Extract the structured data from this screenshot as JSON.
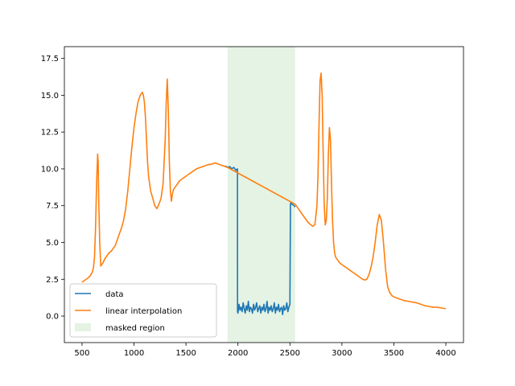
{
  "chart_data": {
    "type": "line",
    "title": "",
    "xlabel": "",
    "ylabel": "",
    "xlim": [
      330,
      4170
    ],
    "ylim": [
      -1.8,
      18.3
    ],
    "xticks": [
      500,
      1000,
      1500,
      2000,
      2500,
      3000,
      3500,
      4000
    ],
    "yticks": [
      0.0,
      2.5,
      5.0,
      7.5,
      10.0,
      12.5,
      15.0,
      17.5
    ],
    "xtick_labels": [
      "500",
      "1000",
      "1500",
      "2000",
      "2500",
      "3000",
      "3500",
      "4000"
    ],
    "ytick_labels": [
      "0.0",
      "2.5",
      "5.0",
      "7.5",
      "10.0",
      "12.5",
      "15.0",
      "17.5"
    ],
    "grid": false,
    "legend_position": "lower-left",
    "masked_region": {
      "label": "masked region",
      "x0": 1900,
      "x1": 2550,
      "color": "#2ca02c",
      "alpha": 0.13
    },
    "series": [
      {
        "name": "data",
        "color": "#1f77b4",
        "x": [
          1880,
          1900,
          1920,
          1940,
          1960,
          1980,
          1995,
          1996,
          2000,
          2010,
          2020,
          2030,
          2040,
          2050,
          2060,
          2070,
          2080,
          2090,
          2100,
          2110,
          2120,
          2130,
          2140,
          2150,
          2160,
          2170,
          2180,
          2190,
          2200,
          2210,
          2220,
          2230,
          2240,
          2250,
          2260,
          2270,
          2280,
          2290,
          2300,
          2310,
          2320,
          2330,
          2340,
          2350,
          2360,
          2370,
          2380,
          2390,
          2400,
          2410,
          2420,
          2430,
          2440,
          2450,
          2460,
          2470,
          2480,
          2490,
          2500,
          2505,
          2510,
          2520,
          2540,
          2550
        ],
        "y": [
          10.2,
          10.1,
          10.15,
          10.0,
          10.1,
          9.9,
          10.0,
          0.3,
          0.2,
          0.8,
          0.4,
          0.6,
          0.3,
          0.9,
          0.5,
          0.2,
          0.7,
          0.4,
          1.0,
          0.3,
          0.6,
          0.5,
          0.2,
          0.8,
          0.4,
          0.6,
          0.9,
          0.3,
          0.5,
          0.7,
          0.2,
          0.6,
          0.4,
          0.8,
          0.3,
          0.5,
          1.0,
          0.2,
          0.6,
          0.4,
          0.7,
          0.3,
          0.5,
          0.9,
          0.2,
          0.6,
          0.4,
          0.8,
          0.3,
          0.5,
          0.6,
          0.1,
          0.7,
          0.4,
          0.5,
          0.9,
          0.3,
          0.6,
          0.8,
          7.6,
          7.7,
          7.6,
          7.5,
          7.4
        ]
      },
      {
        "name": "linear interpolation",
        "color": "#ff7f0e",
        "x": [
          500,
          520,
          540,
          560,
          580,
          600,
          610,
          620,
          630,
          640,
          650,
          655,
          660,
          670,
          680,
          690,
          700,
          720,
          740,
          760,
          780,
          800,
          820,
          840,
          860,
          880,
          900,
          920,
          940,
          960,
          980,
          1000,
          1020,
          1040,
          1060,
          1080,
          1090,
          1100,
          1110,
          1120,
          1130,
          1140,
          1160,
          1180,
          1200,
          1220,
          1240,
          1260,
          1280,
          1300,
          1310,
          1320,
          1330,
          1340,
          1350,
          1360,
          1370,
          1380,
          1400,
          1420,
          1440,
          1460,
          1480,
          1500,
          1520,
          1540,
          1560,
          1580,
          1600,
          1620,
          1640,
          1660,
          1680,
          1700,
          1720,
          1740,
          1760,
          1780,
          1800,
          1820,
          1840,
          1860,
          1880,
          1900,
          2550,
          2570,
          2590,
          2610,
          2630,
          2650,
          2670,
          2700,
          2720,
          2740,
          2760,
          2770,
          2780,
          2790,
          2800,
          2810,
          2820,
          2830,
          2840,
          2850,
          2860,
          2870,
          2880,
          2890,
          2900,
          2910,
          2920,
          2930,
          2940,
          2960,
          2980,
          3000,
          3020,
          3040,
          3060,
          3080,
          3100,
          3120,
          3140,
          3160,
          3180,
          3200,
          3220,
          3240,
          3260,
          3280,
          3300,
          3320,
          3340,
          3360,
          3380,
          3400,
          3420,
          3440,
          3460,
          3480,
          3500,
          3520,
          3540,
          3560,
          3580,
          3600,
          3640,
          3680,
          3720,
          3760,
          3800,
          3840,
          3880,
          3920,
          3960,
          4000
        ],
        "y": [
          2.3,
          2.4,
          2.5,
          2.6,
          2.75,
          3.0,
          3.3,
          4.0,
          6.0,
          9.0,
          11.0,
          10.5,
          8.0,
          5.0,
          3.4,
          3.5,
          3.6,
          3.9,
          4.1,
          4.3,
          4.4,
          4.6,
          4.8,
          5.2,
          5.6,
          6.0,
          6.5,
          7.3,
          8.5,
          10.0,
          11.5,
          12.8,
          13.8,
          14.6,
          15.0,
          15.2,
          15.0,
          14.5,
          13.5,
          12.0,
          10.5,
          9.5,
          8.5,
          8.0,
          7.5,
          7.3,
          7.6,
          8.0,
          9.0,
          12.0,
          14.5,
          16.1,
          14.0,
          10.5,
          8.5,
          7.8,
          8.3,
          8.6,
          8.8,
          9.0,
          9.2,
          9.3,
          9.4,
          9.5,
          9.6,
          9.7,
          9.8,
          9.9,
          10.0,
          10.05,
          10.1,
          10.15,
          10.2,
          10.25,
          10.3,
          10.3,
          10.35,
          10.4,
          10.35,
          10.3,
          10.25,
          10.2,
          10.15,
          10.1,
          7.6,
          7.4,
          7.2,
          7.0,
          6.8,
          6.6,
          6.4,
          6.2,
          6.1,
          6.2,
          7.5,
          9.5,
          13.0,
          16.0,
          16.5,
          15.0,
          11.0,
          7.5,
          6.2,
          6.5,
          8.0,
          11.0,
          12.8,
          12.0,
          9.0,
          6.5,
          5.0,
          4.3,
          4.0,
          3.8,
          3.6,
          3.5,
          3.4,
          3.3,
          3.2,
          3.1,
          3.0,
          2.9,
          2.8,
          2.7,
          2.6,
          2.5,
          2.45,
          2.5,
          2.8,
          3.3,
          4.0,
          5.0,
          6.2,
          6.9,
          6.5,
          5.0,
          3.2,
          2.0,
          1.6,
          1.4,
          1.3,
          1.25,
          1.2,
          1.15,
          1.1,
          1.05,
          1.0,
          0.95,
          0.9,
          0.8,
          0.7,
          0.65,
          0.6,
          0.6,
          0.55,
          0.5
        ]
      }
    ]
  }
}
